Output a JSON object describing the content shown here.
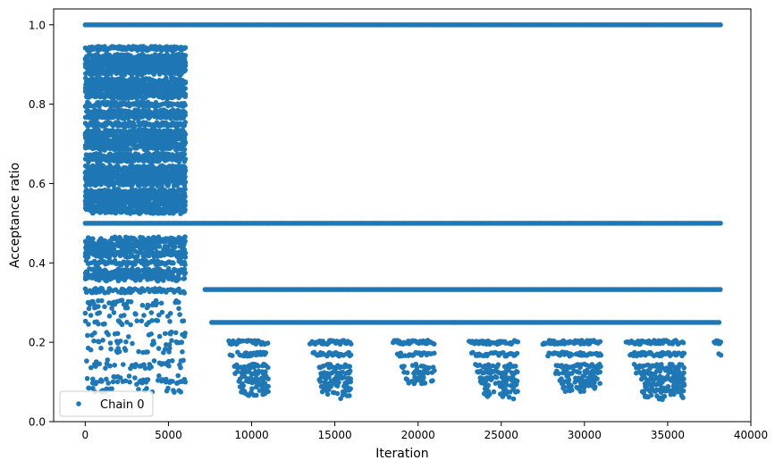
{
  "chart_data": {
    "type": "scatter",
    "xlabel": "Iteration",
    "ylabel": "Acceptance ratio",
    "xlim": [
      -1900,
      40000
    ],
    "ylim": [
      0.0,
      1.04
    ],
    "x_ticks": [
      0,
      5000,
      10000,
      15000,
      20000,
      25000,
      30000,
      35000,
      40000
    ],
    "x_tick_labels": [
      "0",
      "5000",
      "10000",
      "15000",
      "20000",
      "25000",
      "30000",
      "35000",
      "40000"
    ],
    "y_ticks": [
      0.0,
      0.2,
      0.4,
      0.6,
      0.8,
      1.0
    ],
    "y_tick_labels": [
      "0.0",
      "0.2",
      "0.4",
      "0.6",
      "0.8",
      "1.0"
    ],
    "grid": false,
    "legend_position": "lower-left",
    "marker_color": "#1f77b4",
    "series": [
      {
        "name": "Chain 0",
        "color": "#1f77b4",
        "bands": [
          {
            "y": 1.0,
            "x_start": 0,
            "x_end": 38200
          },
          {
            "y": 0.5,
            "x_start": 0,
            "x_end": 38200
          },
          {
            "y": 0.333,
            "x_start": 7200,
            "x_end": 38200
          },
          {
            "y": 0.25,
            "x_start": 7600,
            "x_end": 38200
          }
        ],
        "dense_region": {
          "x_start": 0,
          "x_end": 6000,
          "y_min": 0.08,
          "y_max": 0.94
        },
        "clusters": [
          {
            "x_start": 8500,
            "x_end": 11000,
            "y_min": 0.07,
            "y_max": 0.2
          },
          {
            "x_start": 13500,
            "x_end": 16000,
            "y_min": 0.06,
            "y_max": 0.2
          },
          {
            "x_start": 18500,
            "x_end": 21000,
            "y_min": 0.1,
            "y_max": 0.2
          },
          {
            "x_start": 23000,
            "x_end": 26000,
            "y_min": 0.06,
            "y_max": 0.2
          },
          {
            "x_start": 27500,
            "x_end": 31000,
            "y_min": 0.08,
            "y_max": 0.2
          },
          {
            "x_start": 32500,
            "x_end": 36000,
            "y_min": 0.05,
            "y_max": 0.2
          },
          {
            "x_start": 37800,
            "x_end": 38200,
            "y_min": 0.17,
            "y_max": 0.2
          }
        ]
      }
    ]
  }
}
